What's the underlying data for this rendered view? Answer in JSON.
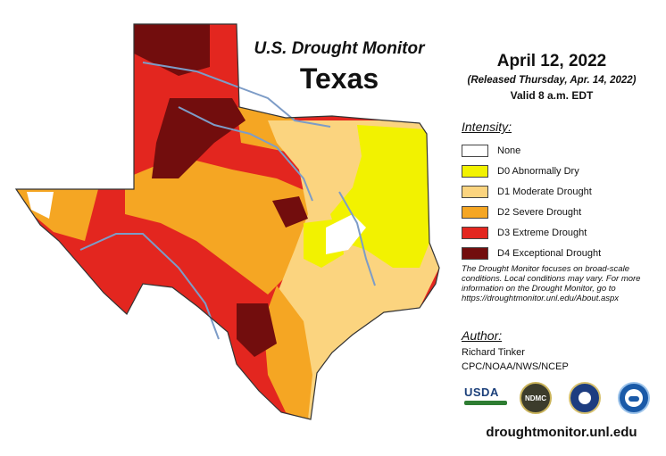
{
  "header": {
    "line1": "U.S. Drought Monitor",
    "line2": "Texas"
  },
  "dates": {
    "map_date": "April 12, 2022",
    "released": "(Released Thursday, Apr. 14, 2022)",
    "valid": "Valid 8 a.m. EDT"
  },
  "legend": {
    "heading": "Intensity:",
    "items": [
      {
        "label": "None",
        "color": "#ffffff"
      },
      {
        "label": "D0 Abnormally Dry",
        "color": "#f2f200"
      },
      {
        "label": "D1 Moderate Drought",
        "color": "#fbd47f"
      },
      {
        "label": "D2 Severe Drought",
        "color": "#f5a623"
      },
      {
        "label": "D3 Extreme Drought",
        "color": "#e3261f"
      },
      {
        "label": "D4 Exceptional Drought",
        "color": "#720d0d"
      }
    ]
  },
  "note": "The Drought Monitor focuses on broad-scale conditions. Local conditions may vary. For more information on the Drought Monitor, go to https://droughtmonitor.unl.edu/About.aspx",
  "author": {
    "heading": "Author:",
    "name": "Richard Tinker",
    "org": "CPC/NOAA/NWS/NCEP"
  },
  "logos": {
    "usda": "USDA",
    "ndmc": "NDMC"
  },
  "footer": {
    "site": "droughtmonitor.unl.edu"
  }
}
